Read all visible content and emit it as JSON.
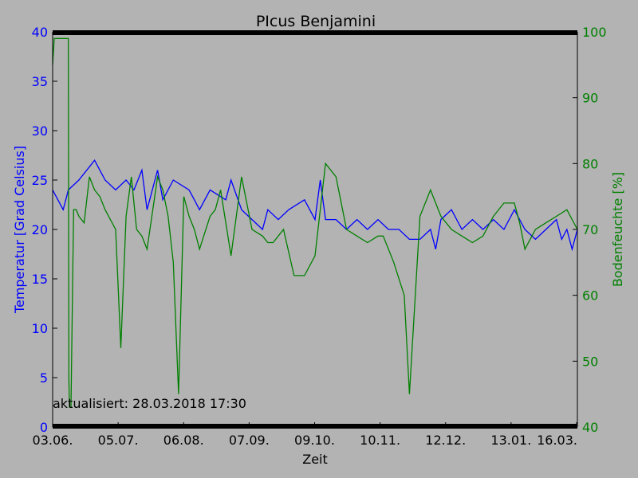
{
  "colors": {
    "temperature": "#0000ff",
    "moisture": "#008000",
    "background": "#b3b3b3"
  },
  "chart_data": {
    "type": "line",
    "title": "PIcus Benjamini",
    "xlabel": "Zeit",
    "ylabel_left": "Temperatur [Grad Celsius]",
    "ylabel_right": "Bodenfeuchte [%]",
    "x_ticks": [
      "03.06.",
      "05.07.",
      "06.08.",
      "07.09.",
      "09.10.",
      "10.11.",
      "12.12.",
      "13.01.",
      "16.03."
    ],
    "ylim_left": [
      0,
      40
    ],
    "yticks_left": [
      0,
      5,
      10,
      15,
      20,
      25,
      30,
      35,
      40
    ],
    "ylim_right": [
      40,
      100
    ],
    "yticks_right": [
      40,
      50,
      60,
      70,
      80,
      90,
      100
    ],
    "annotation": "aktualisiert: 28.03.2018 17:30",
    "grid": false,
    "series": [
      {
        "axis": "left",
        "x": [
          0,
          0.02,
          0.025,
          0.03,
          0.05,
          0.08,
          0.1,
          0.12,
          0.14,
          0.155,
          0.17,
          0.18,
          0.2,
          0.21,
          0.23,
          0.26,
          0.27,
          0.28,
          0.3,
          0.33,
          0.34,
          0.36,
          0.38,
          0.4,
          0.41,
          0.43,
          0.45,
          0.48,
          0.5,
          0.51,
          0.52,
          0.54,
          0.56,
          0.58,
          0.6,
          0.62,
          0.64,
          0.66,
          0.68,
          0.7,
          0.72,
          0.73,
          0.74,
          0.76,
          0.78,
          0.8,
          0.82,
          0.84,
          0.86,
          0.88,
          0.9,
          0.92,
          0.94,
          0.96,
          0.97,
          0.98,
          0.99,
          1.0
        ],
        "y": [
          24,
          22,
          23,
          24,
          25,
          27,
          25,
          24,
          25,
          24,
          26,
          22,
          26,
          23,
          25,
          24,
          23,
          22,
          24,
          23,
          25,
          22,
          21,
          20,
          22,
          21,
          22,
          23,
          21,
          25,
          21,
          21,
          20,
          21,
          20,
          21,
          20,
          20,
          19,
          19,
          20,
          18,
          21,
          22,
          20,
          21,
          20,
          21,
          20,
          22,
          20,
          19,
          20,
          21,
          19,
          20,
          18,
          20
        ]
      },
      {
        "axis": "right",
        "x": [
          0,
          0.003,
          0.005,
          0.01,
          0.015,
          0.03,
          0.031,
          0.032,
          0.035,
          0.04,
          0.045,
          0.05,
          0.06,
          0.07,
          0.08,
          0.09,
          0.1,
          0.12,
          0.13,
          0.14,
          0.15,
          0.16,
          0.17,
          0.18,
          0.2,
          0.21,
          0.22,
          0.23,
          0.24,
          0.25,
          0.26,
          0.27,
          0.28,
          0.3,
          0.31,
          0.32,
          0.34,
          0.36,
          0.38,
          0.4,
          0.41,
          0.42,
          0.43,
          0.44,
          0.46,
          0.48,
          0.5,
          0.52,
          0.54,
          0.56,
          0.58,
          0.6,
          0.62,
          0.63,
          0.65,
          0.67,
          0.68,
          0.7,
          0.72,
          0.74,
          0.76,
          0.78,
          0.8,
          0.82,
          0.84,
          0.86,
          0.88,
          0.89,
          0.9,
          0.92,
          0.94,
          0.96,
          0.98,
          1.0
        ],
        "y": [
          95,
          99,
          99,
          99,
          99,
          99,
          47,
          43,
          43,
          73,
          73,
          72,
          71,
          78,
          76,
          75,
          73,
          70,
          52,
          72,
          78,
          70,
          69,
          67,
          78,
          76,
          72,
          65,
          45,
          75,
          72,
          70,
          67,
          72,
          73,
          76,
          66,
          78,
          70,
          69,
          68,
          68,
          69,
          70,
          63,
          63,
          66,
          80,
          78,
          70,
          69,
          68,
          69,
          69,
          65,
          60,
          45,
          72,
          76,
          72,
          70,
          69,
          68,
          69,
          72,
          74,
          74,
          71,
          67,
          70,
          71,
          72,
          73,
          70
        ]
      }
    ]
  }
}
